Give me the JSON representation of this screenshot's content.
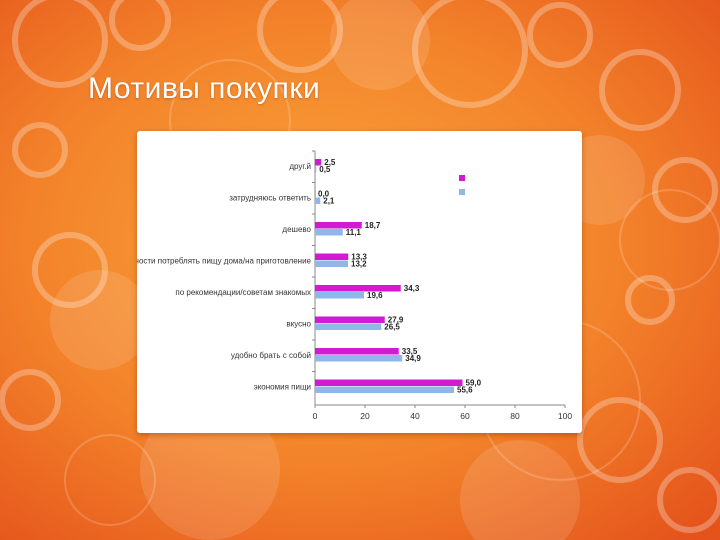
{
  "slide": {
    "title": "Мотивы покупки"
  },
  "colors": {
    "series_1": "#d31ad3",
    "series_2": "#8fb7ea",
    "background": "#ee6d1d"
  },
  "chart_data": {
    "type": "bar",
    "orientation": "horizontal",
    "categories": [
      "друг.й",
      "затрудняюсь ответить",
      "дешево",
      "нет возможности потреблять пищу дома/на приготовление",
      "по рекомендации/советам знакомых",
      "вкусно",
      "удобно брать с собой",
      "экономия пищи"
    ],
    "series": [
      {
        "name": "",
        "values": [
          2.5,
          0.0,
          18.7,
          13.3,
          34.3,
          27.9,
          33.5,
          59.0
        ]
      },
      {
        "name": "",
        "values": [
          0.5,
          2.1,
          11.1,
          13.2,
          19.6,
          26.5,
          34.9,
          55.6
        ]
      }
    ],
    "value_labels": [
      [
        "2,5",
        "0,0",
        "18,7",
        "13,3",
        "34,3",
        "27,9",
        "33,5",
        "59,0"
      ],
      [
        "0,5",
        "2,1",
        "11,1",
        "13,2",
        "19,6",
        "26,5",
        "34,9",
        "55,6"
      ]
    ],
    "x_ticks": [
      "0",
      "20",
      "40",
      "60",
      "80",
      "100"
    ],
    "xlim": [
      0,
      100
    ],
    "legend_position": "top-right",
    "grid": false
  }
}
